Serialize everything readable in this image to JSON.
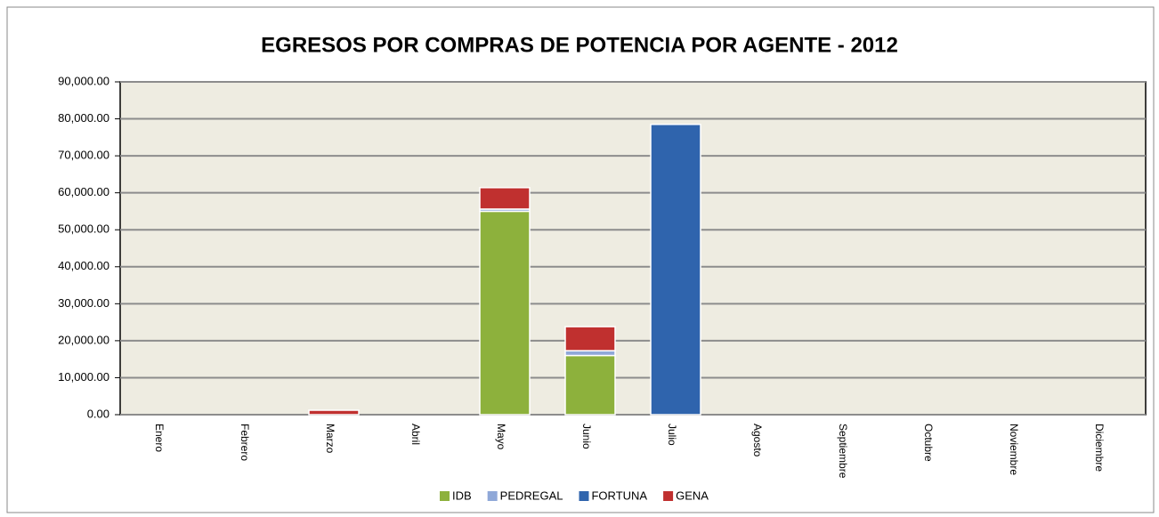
{
  "chart_data": {
    "type": "stacked_bar",
    "title": "EGRESOS POR COMPRAS DE POTENCIA POR AGENTE - 2012",
    "categories": [
      "Enero",
      "Febrero",
      "Marzo",
      "Abril",
      "Mayo",
      "Junio",
      "Julio",
      "Agosto",
      "Septiembre",
      "Octubre",
      "Noviembre",
      "Diciembre"
    ],
    "series": [
      {
        "name": "IDB",
        "color": "#8db13c",
        "values": [
          0,
          0,
          0,
          0,
          55000,
          16000,
          0,
          0,
          0,
          0,
          0,
          0
        ]
      },
      {
        "name": "PEDREGAL",
        "color": "#8fa8d8",
        "values": [
          0,
          0,
          0,
          0,
          600,
          1300,
          0,
          0,
          0,
          0,
          0,
          0
        ]
      },
      {
        "name": "FORTUNA",
        "color": "#2f64ad",
        "values": [
          0,
          0,
          0,
          0,
          0,
          0,
          78500,
          0,
          0,
          0,
          0,
          0
        ]
      },
      {
        "name": "GENA",
        "color": "#c0302f",
        "values": [
          0,
          0,
          1200,
          0,
          5800,
          6500,
          0,
          0,
          0,
          0,
          0,
          0
        ]
      }
    ],
    "ylim": [
      0,
      90000
    ],
    "yticks": [
      {
        "value": 0,
        "label": "0.00"
      },
      {
        "value": 10000,
        "label": "10,000.00"
      },
      {
        "value": 20000,
        "label": "20,000.00"
      },
      {
        "value": 30000,
        "label": "30,000.00"
      },
      {
        "value": 40000,
        "label": "40,000.00"
      },
      {
        "value": 50000,
        "label": "50,000.00"
      },
      {
        "value": 60000,
        "label": "60,000.00"
      },
      {
        "value": 70000,
        "label": "70,000.00"
      },
      {
        "value": 80000,
        "label": "80,000.00"
      },
      {
        "value": 90000,
        "label": "90,000.00"
      }
    ],
    "grid": true,
    "legend": "bottom"
  }
}
